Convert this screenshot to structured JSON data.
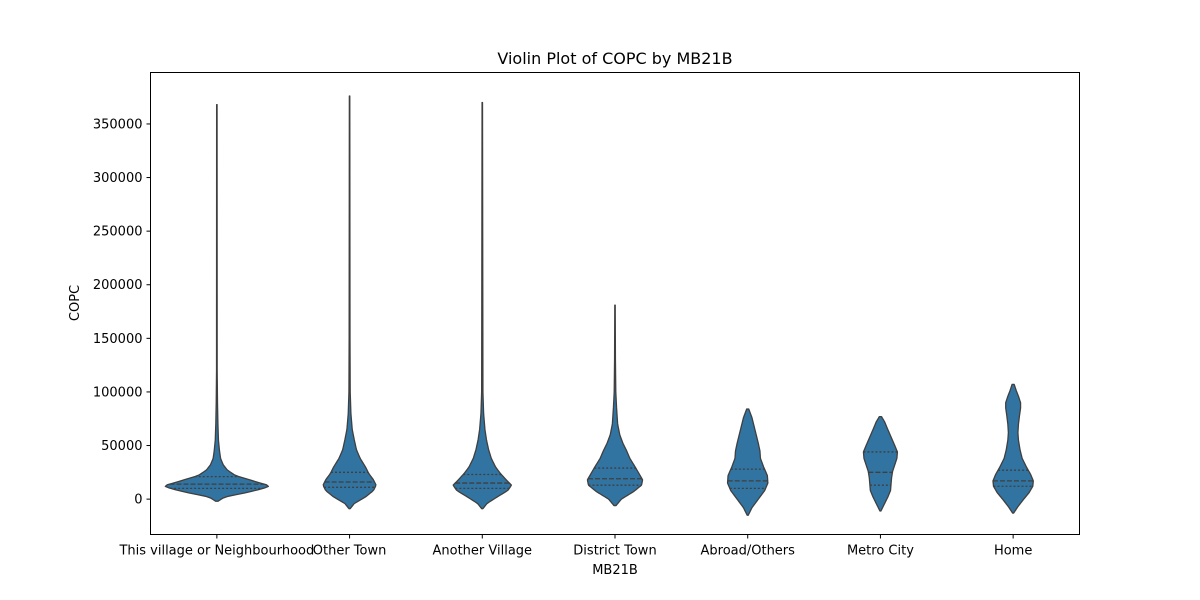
{
  "chart_data": {
    "type": "violin",
    "title": "Violin Plot of COPC by MB21B",
    "xlabel": "MB21B",
    "ylabel": "COPC",
    "ylim": [
      -33000,
      398000
    ],
    "yticks": [
      0,
      50000,
      100000,
      150000,
      200000,
      250000,
      300000,
      350000
    ],
    "grid": false,
    "color": "#3274a1",
    "edge_color": "#3f3f3f",
    "inner": "quartile",
    "categories": [
      "This village or Neighbourhood",
      "Other Town",
      "Another Village",
      "District Town",
      "Abroad/Others",
      "Metro City",
      "Home"
    ],
    "series": [
      {
        "category": "This village or Neighbourhood",
        "min": -2000,
        "max": 368000,
        "q1": 10000,
        "median": 14000,
        "q3": 21000,
        "profile": [
          [
            -2000,
            0.02
          ],
          [
            2000,
            0.15
          ],
          [
            6000,
            0.55
          ],
          [
            10000,
            0.88
          ],
          [
            12500,
            1.0
          ],
          [
            15000,
            0.82
          ],
          [
            19000,
            0.55
          ],
          [
            22000,
            0.35
          ],
          [
            27000,
            0.2
          ],
          [
            32000,
            0.12
          ],
          [
            38000,
            0.07
          ],
          [
            45000,
            0.05
          ],
          [
            55000,
            0.03
          ],
          [
            70000,
            0.02
          ],
          [
            90000,
            0.012
          ],
          [
            120000,
            0.006
          ],
          [
            368000,
            0.004
          ]
        ]
      },
      {
        "category": "Other Town",
        "min": -9000,
        "max": 376000,
        "q1": 11000,
        "median": 16000,
        "q3": 25000,
        "profile": [
          [
            -9000,
            0.01
          ],
          [
            -4000,
            0.09
          ],
          [
            2000,
            0.3
          ],
          [
            8000,
            0.45
          ],
          [
            13000,
            0.5
          ],
          [
            18000,
            0.45
          ],
          [
            24000,
            0.36
          ],
          [
            30000,
            0.3
          ],
          [
            38000,
            0.2
          ],
          [
            46000,
            0.13
          ],
          [
            55000,
            0.09
          ],
          [
            65000,
            0.05
          ],
          [
            80000,
            0.025
          ],
          [
            100000,
            0.012
          ],
          [
            150000,
            0.008
          ],
          [
            376000,
            0.004
          ]
        ]
      },
      {
        "category": "Another Village",
        "min": -9000,
        "max": 370000,
        "q1": 10000,
        "median": 15000,
        "q3": 23000,
        "profile": [
          [
            -9000,
            0.01
          ],
          [
            -4000,
            0.09
          ],
          [
            2000,
            0.28
          ],
          [
            8000,
            0.48
          ],
          [
            13000,
            0.55
          ],
          [
            18000,
            0.45
          ],
          [
            24000,
            0.34
          ],
          [
            30000,
            0.25
          ],
          [
            38000,
            0.17
          ],
          [
            46000,
            0.12
          ],
          [
            55000,
            0.08
          ],
          [
            65000,
            0.05
          ],
          [
            80000,
            0.025
          ],
          [
            100000,
            0.012
          ],
          [
            370000,
            0.004
          ]
        ]
      },
      {
        "category": "District Town",
        "min": -6000,
        "max": 181000,
        "q1": 13000,
        "median": 19000,
        "q3": 29000,
        "profile": [
          [
            -6000,
            0.02
          ],
          [
            0,
            0.12
          ],
          [
            7000,
            0.35
          ],
          [
            13000,
            0.5
          ],
          [
            18000,
            0.52
          ],
          [
            24000,
            0.45
          ],
          [
            30000,
            0.38
          ],
          [
            38000,
            0.28
          ],
          [
            45000,
            0.22
          ],
          [
            52000,
            0.15
          ],
          [
            60000,
            0.09
          ],
          [
            70000,
            0.05
          ],
          [
            85000,
            0.03
          ],
          [
            100000,
            0.015
          ],
          [
            130000,
            0.008
          ],
          [
            181000,
            0.004
          ]
        ]
      },
      {
        "category": "Abroad/Others",
        "min": -15000,
        "max": 84000,
        "q1": 10000,
        "median": 17000,
        "q3": 28000,
        "profile": [
          [
            -15000,
            0.01
          ],
          [
            -8000,
            0.08
          ],
          [
            0,
            0.2
          ],
          [
            8000,
            0.32
          ],
          [
            15000,
            0.38
          ],
          [
            22000,
            0.37
          ],
          [
            30000,
            0.3
          ],
          [
            38000,
            0.24
          ],
          [
            45000,
            0.23
          ],
          [
            52000,
            0.2
          ],
          [
            60000,
            0.16
          ],
          [
            68000,
            0.12
          ],
          [
            76000,
            0.08
          ],
          [
            84000,
            0.02
          ]
        ]
      },
      {
        "category": "Metro City",
        "min": -11000,
        "max": 77000,
        "q1": 13000,
        "median": 25000,
        "q3": 44000,
        "profile": [
          [
            -11000,
            0.01
          ],
          [
            -5000,
            0.07
          ],
          [
            2000,
            0.14
          ],
          [
            8000,
            0.19
          ],
          [
            14000,
            0.2
          ],
          [
            20000,
            0.21
          ],
          [
            26000,
            0.23
          ],
          [
            32000,
            0.27
          ],
          [
            38000,
            0.31
          ],
          [
            44000,
            0.32
          ],
          [
            50000,
            0.27
          ],
          [
            58000,
            0.2
          ],
          [
            66000,
            0.13
          ],
          [
            72000,
            0.08
          ],
          [
            77000,
            0.02
          ]
        ]
      },
      {
        "category": "Home",
        "min": -13000,
        "max": 107000,
        "q1": 12000,
        "median": 17000,
        "q3": 27000,
        "profile": [
          [
            -13000,
            0.01
          ],
          [
            -7000,
            0.09
          ],
          [
            0,
            0.2
          ],
          [
            6000,
            0.3
          ],
          [
            12000,
            0.37
          ],
          [
            17000,
            0.38
          ],
          [
            23000,
            0.33
          ],
          [
            30000,
            0.25
          ],
          [
            38000,
            0.17
          ],
          [
            46000,
            0.13
          ],
          [
            55000,
            0.1
          ],
          [
            62000,
            0.09
          ],
          [
            70000,
            0.1
          ],
          [
            78000,
            0.12
          ],
          [
            85000,
            0.14
          ],
          [
            90000,
            0.14
          ],
          [
            96000,
            0.1
          ],
          [
            101000,
            0.06
          ],
          [
            107000,
            0.02
          ]
        ]
      }
    ]
  }
}
